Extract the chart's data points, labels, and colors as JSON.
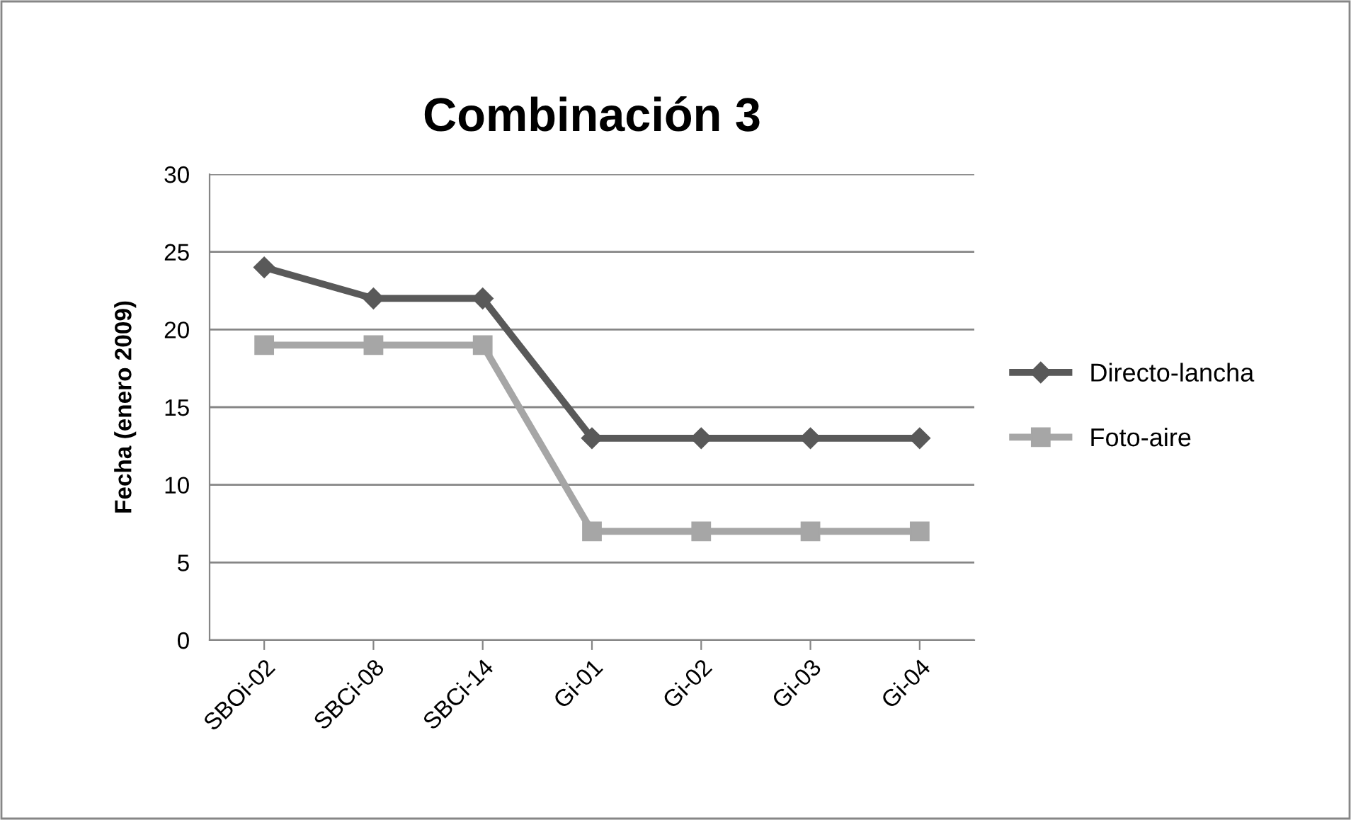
{
  "chart_data": {
    "type": "line",
    "title": "Combinación 3",
    "ylabel": "Fecha (enero 2009)",
    "categories": [
      "SBOi-02",
      "SBCi-08",
      "SBCi-14",
      "Gi-01",
      "Gi-02",
      "Gi-03",
      "Gi-04"
    ],
    "series": [
      {
        "name": "Directo-lancha",
        "color": "#595959",
        "marker": "diamond",
        "values": [
          24,
          22,
          22,
          13,
          13,
          13,
          13
        ]
      },
      {
        "name": "Foto-aire",
        "color": "#a6a6a6",
        "marker": "square",
        "values": [
          19,
          19,
          19,
          7,
          7,
          7,
          7
        ]
      }
    ],
    "ylim": [
      0,
      30
    ],
    "yticks": [
      0,
      5,
      10,
      15,
      20,
      25,
      30
    ],
    "grid": "y",
    "legend": "right"
  }
}
